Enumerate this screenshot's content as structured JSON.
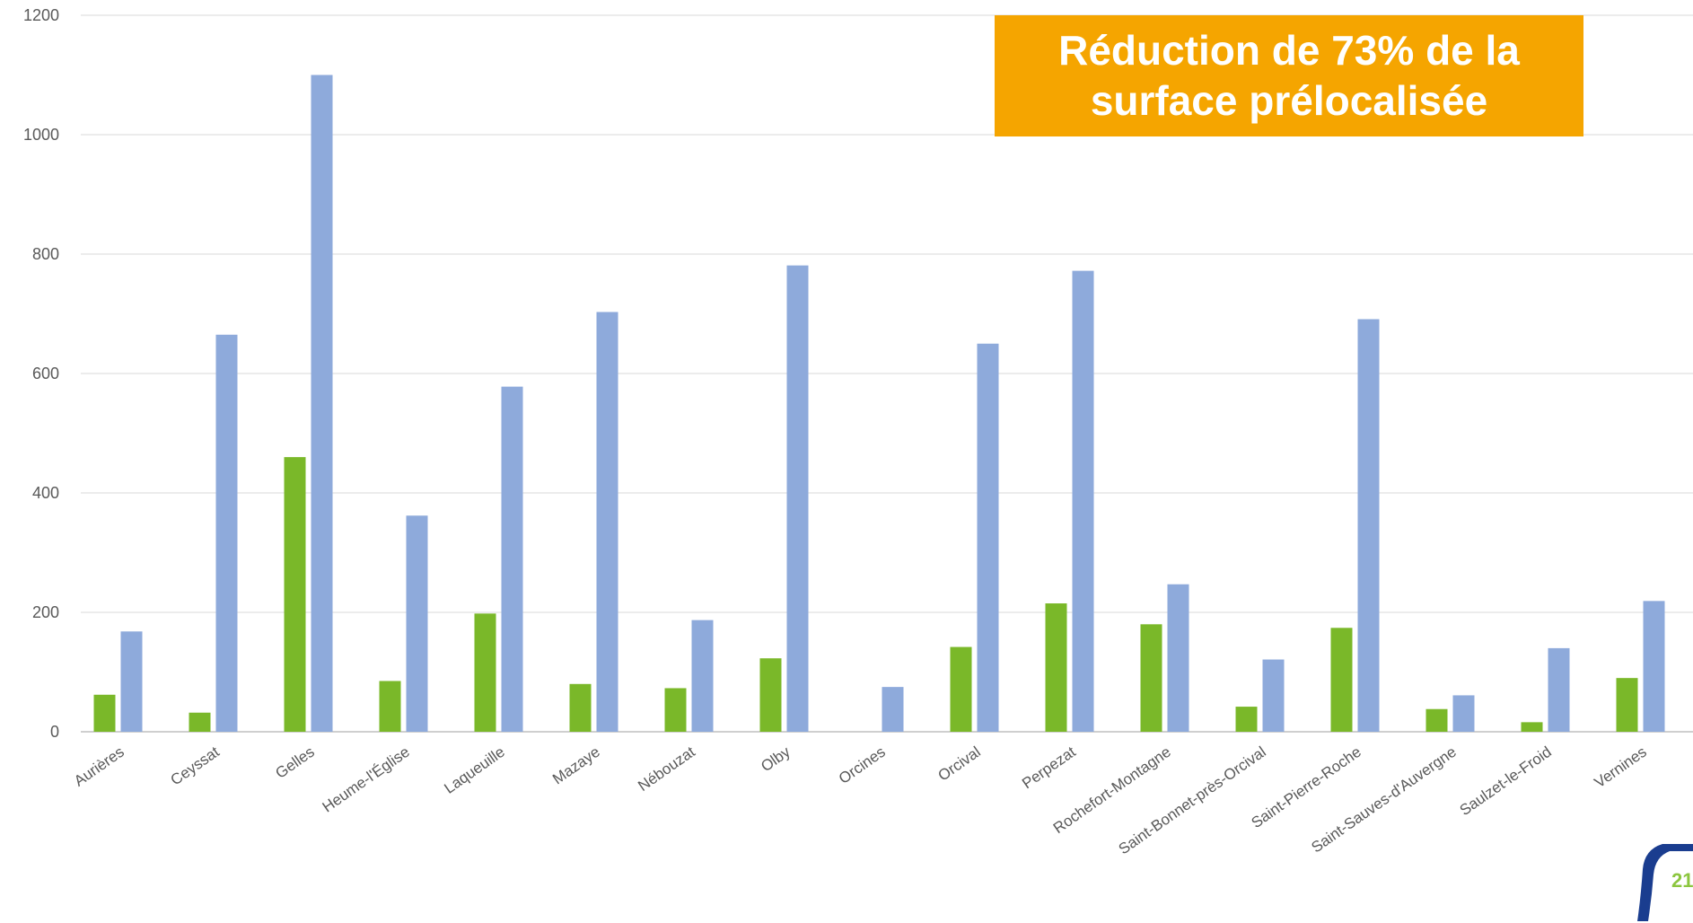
{
  "chart_data": {
    "type": "bar",
    "categories": [
      "Aurières",
      "Ceyssat",
      "Gelles",
      "Heume-l'Église",
      "Laqueuille",
      "Mazaye",
      "Nébouzat",
      "Olby",
      "Orcines",
      "Orcival",
      "Perpezat",
      "Rochefort-Montagne",
      "Saint-Bonnet-près-Orcival",
      "Saint-Pierre-Roche",
      "Saint-Sauves-d'Auvergne",
      "Saulzet-le-Froid",
      "Vernines"
    ],
    "series": [
      {
        "color": "#7ab829",
        "values": [
          62,
          32,
          460,
          85,
          198,
          80,
          73,
          123,
          0,
          142,
          215,
          180,
          42,
          174,
          38,
          16,
          90
        ]
      },
      {
        "color": "#8eaadb",
        "values": [
          168,
          665,
          1100,
          362,
          578,
          703,
          187,
          781,
          75,
          650,
          772,
          247,
          121,
          691,
          61,
          140,
          219
        ]
      }
    ],
    "y_ticks": [
      "0",
      "200",
      "400",
      "600",
      "800",
      "1000",
      "1200"
    ],
    "ylim": [
      0,
      1200
    ],
    "grid": true,
    "title": "",
    "xlabel": "",
    "ylabel": ""
  },
  "callout": {
    "line1": "Réduction de 73% de la",
    "line2": "surface prélocalisée",
    "color": "#f5a500"
  },
  "page_number": "21"
}
